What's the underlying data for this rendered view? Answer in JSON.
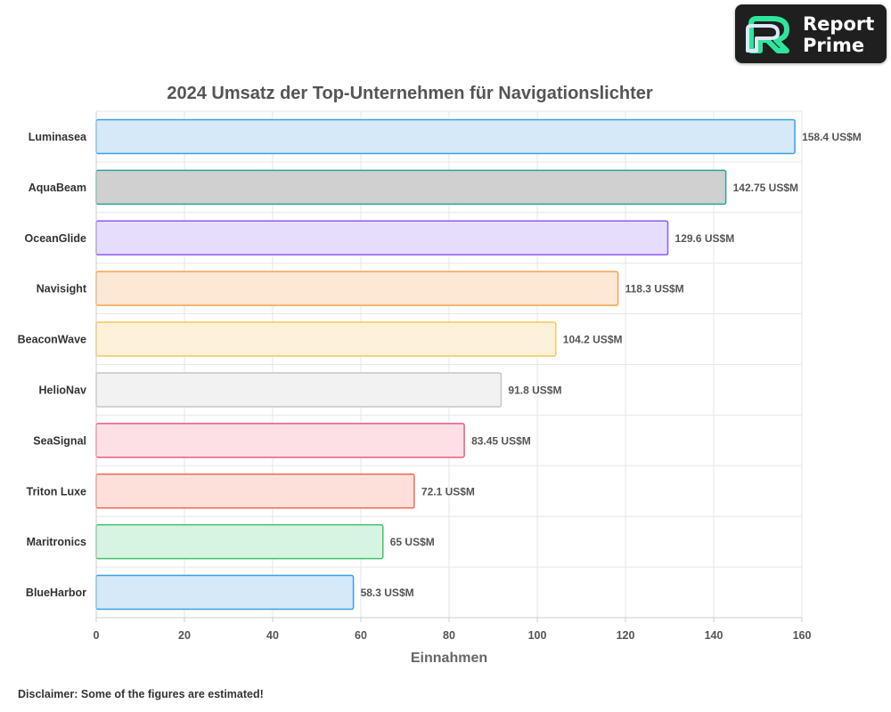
{
  "logo": {
    "line1": "Report",
    "line2": "Prime",
    "icon": "report-prime-logo-icon"
  },
  "disclaimer": "Disclaimer: Some of the figures are estimated!",
  "chart_data": {
    "type": "bar",
    "orientation": "horizontal",
    "title": "2024 Umsatz der Top-Unternehmen für Navigationslichter",
    "xlabel": "Einnahmen",
    "ylabel": "",
    "xlim": [
      0,
      160
    ],
    "x_ticks": [
      0,
      20,
      40,
      60,
      80,
      100,
      120,
      140,
      160
    ],
    "grid": true,
    "legend": "none",
    "value_suffix": " US$M",
    "categories": [
      "Luminasea",
      "AquaBeam",
      "OceanGlide",
      "Navisight",
      "BeaconWave",
      "HelioNav",
      "SeaSignal",
      "Triton Luxe",
      "Maritronics",
      "BlueHarbor"
    ],
    "values": [
      158.4,
      142.75,
      129.6,
      118.3,
      104.2,
      91.8,
      83.45,
      72.1,
      65,
      58.3
    ],
    "data_labels": [
      "158.4 US$M",
      "142.75 US$M",
      "129.6 US$M",
      "118.3 US$M",
      "104.2 US$M",
      "91.8 US$M",
      "83.45 US$M",
      "72.1 US$M",
      "65 US$M",
      "58.3 US$M"
    ],
    "bar_fills": [
      "#d6e9f8",
      "#cfd0cf",
      "#e6dcfc",
      "#fde7d5",
      "#fef1d9",
      "#f2f2f2",
      "#fde0e5",
      "#fee0db",
      "#d7f3e1",
      "#d6e9f8"
    ],
    "bar_strokes": [
      "#3a9fe0",
      "#2aa59f",
      "#8b5cf0",
      "#f4a24c",
      "#f6c75a",
      "#c6c6c6",
      "#ea5a7c",
      "#f26b50",
      "#3ec46a",
      "#3a9fe0"
    ]
  }
}
